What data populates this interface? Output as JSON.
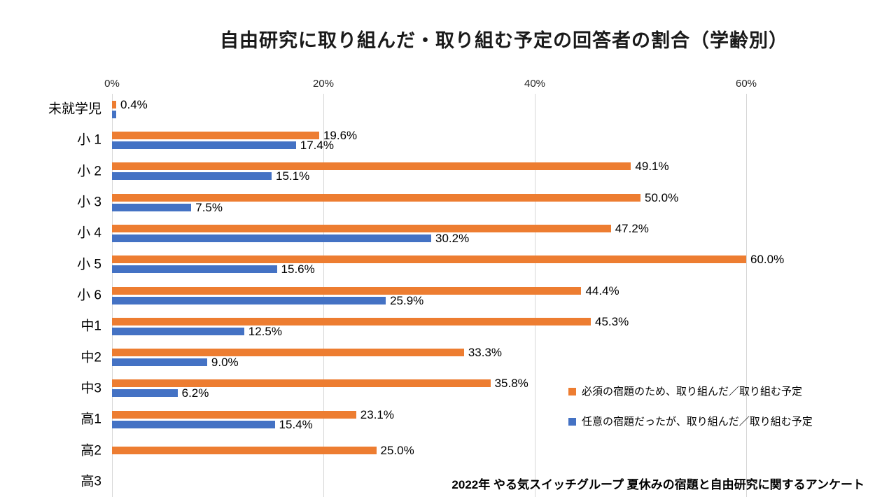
{
  "title": "自由研究に取り組んだ・取り組む予定の回答者の割合（学齢別）",
  "source_note": "2022年 やる気スイッチグループ 夏休みの宿題と自由研究に関するアンケート",
  "colors": {
    "required": "#ED7D31",
    "optional": "#4472C4",
    "gridline": "#D6D6D6",
    "title_text": "#1A1A1A"
  },
  "axis": {
    "ticks": [
      {
        "value": 0,
        "label": "0%"
      },
      {
        "value": 20,
        "label": "20%"
      },
      {
        "value": 40,
        "label": "40%"
      },
      {
        "value": 60,
        "label": "60%"
      }
    ]
  },
  "legend": [
    {
      "color": "#ED7D31",
      "label": "必須の宿題のため、取り組んだ／取り組む予定"
    },
    {
      "color": "#4472C4",
      "label": "任意の宿題だったが、取り組んだ／取り組む予定"
    }
  ],
  "chart_data": {
    "type": "bar",
    "orientation": "horizontal",
    "title": "自由研究に取り組んだ・取り組む予定の回答者の割合（学齢別）",
    "categories": [
      "未就学児",
      "小 1",
      "小 2",
      "小 3",
      "小 4",
      "小 5",
      "小 6",
      "中1",
      "中2",
      "中3",
      "高1",
      "高2",
      "高3"
    ],
    "series": [
      {
        "name": "必須の宿題のため、取り組んだ／取り組む予定",
        "color": "#ED7D31",
        "values": [
          0.4,
          19.6,
          49.1,
          50.0,
          47.2,
          60.0,
          44.4,
          45.3,
          33.3,
          35.8,
          23.1,
          25.0,
          null
        ],
        "labels": [
          "0.4%",
          "19.6%",
          "49.1%",
          "50.0%",
          "47.2%",
          "60.0%",
          "44.4%",
          "45.3%",
          "33.3%",
          "35.8%",
          "23.1%",
          "25.0%",
          ""
        ]
      },
      {
        "name": "任意の宿題だったが、取り組んだ／取り組む予定",
        "color": "#4472C4",
        "values": [
          0.4,
          17.4,
          15.1,
          7.5,
          30.2,
          15.6,
          25.9,
          12.5,
          9.0,
          6.2,
          15.4,
          null,
          null
        ],
        "labels": [
          "",
          "17.4%",
          "15.1%",
          "7.5%",
          "30.2%",
          "15.6%",
          "25.9%",
          "12.5%",
          "9.0%",
          "6.2%",
          "15.4%",
          "",
          ""
        ]
      }
    ],
    "xlim": [
      0,
      66
    ],
    "tick_step": 20,
    "grid": true,
    "legend_position": "right-bottom"
  }
}
